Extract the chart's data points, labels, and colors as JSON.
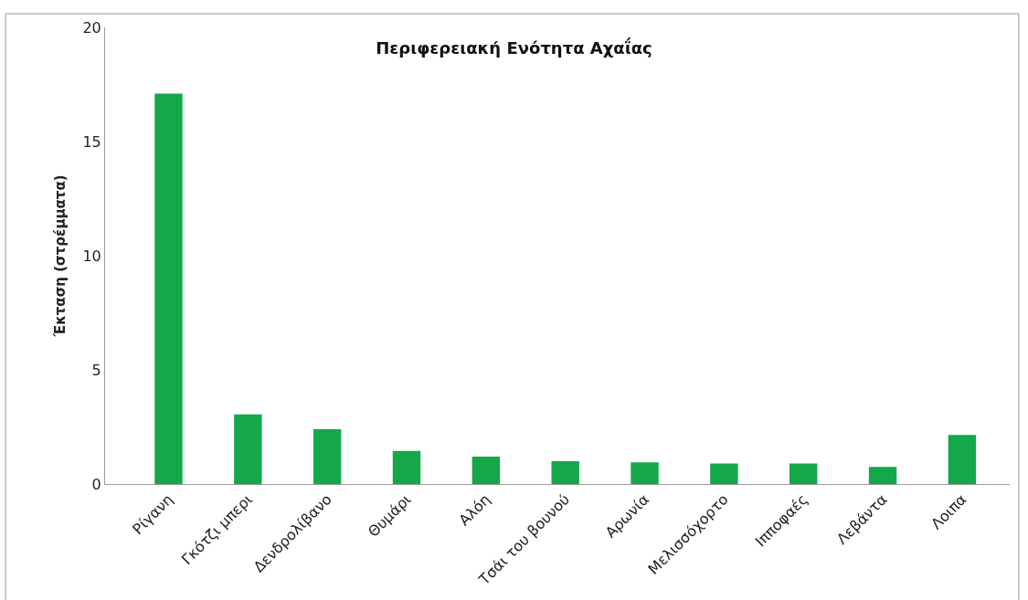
{
  "chart_data": {
    "type": "bar",
    "title": "Περιφερειακή Ενότητα Αχαΐας",
    "ylabel": "Έκταση (στρέμματα)",
    "categories": [
      "Ρίγανη",
      "Γκότζι μπερι",
      "Δενδρολίβανο",
      "Θυμάρι",
      "Αλόη",
      "Τσάι του βουνού",
      "Αρωνία",
      "Μελισσόχορτο",
      "Ιπποφαές",
      "Λεβάντα",
      "Λοιπα"
    ],
    "values": [
      17.1,
      3.05,
      2.4,
      1.45,
      1.2,
      1.0,
      0.95,
      0.9,
      0.9,
      0.75,
      2.15
    ],
    "color": "#14a84a",
    "ylim": [
      0,
      20
    ],
    "yticks": [
      0,
      5,
      10,
      15,
      20
    ]
  }
}
